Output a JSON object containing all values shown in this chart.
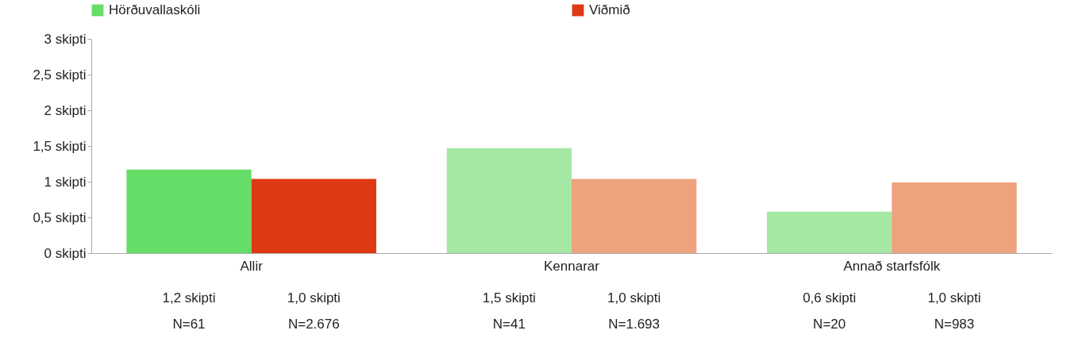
{
  "chart_data": {
    "type": "bar",
    "categories": [
      "Allir",
      "Kennarar",
      "Annað starfsfólk"
    ],
    "series": [
      {
        "name": "Hörðuvallaskóli",
        "color": "#66dd66",
        "colors": [
          "#66dd66",
          "#a4e8a4",
          "#a4e8a4"
        ],
        "values": [
          1.17,
          1.47,
          0.58
        ],
        "value_labels": [
          "1,2 skipti",
          "1,5 skipti",
          "0,6 skipti"
        ]
      },
      {
        "name": "Viðmið",
        "color": "#dd3a14",
        "colors": [
          "#dd3a14",
          "#eea27e",
          "#eea27e"
        ],
        "values": [
          1.04,
          1.04,
          0.99
        ],
        "value_labels": [
          "1,0 skipti",
          "1,0 skipti",
          "1,0 skipti"
        ]
      }
    ],
    "ylim": [
      0,
      3
    ],
    "yticks": [
      {
        "value": 0,
        "label": "0 skipti"
      },
      {
        "value": 0.5,
        "label": "0,5 skipti"
      },
      {
        "value": 1,
        "label": "1 skipti"
      },
      {
        "value": 1.5,
        "label": "1,5 skipti"
      },
      {
        "value": 2,
        "label": "2 skipti"
      },
      {
        "value": 2.5,
        "label": "2,5 skipti"
      },
      {
        "value": 3,
        "label": "3 skipti"
      }
    ],
    "annotations": [
      "N=61",
      "N=2.676",
      "N=41",
      "N=1.693",
      "N=20",
      "N=983"
    ],
    "grid": false,
    "legend": "top left"
  }
}
